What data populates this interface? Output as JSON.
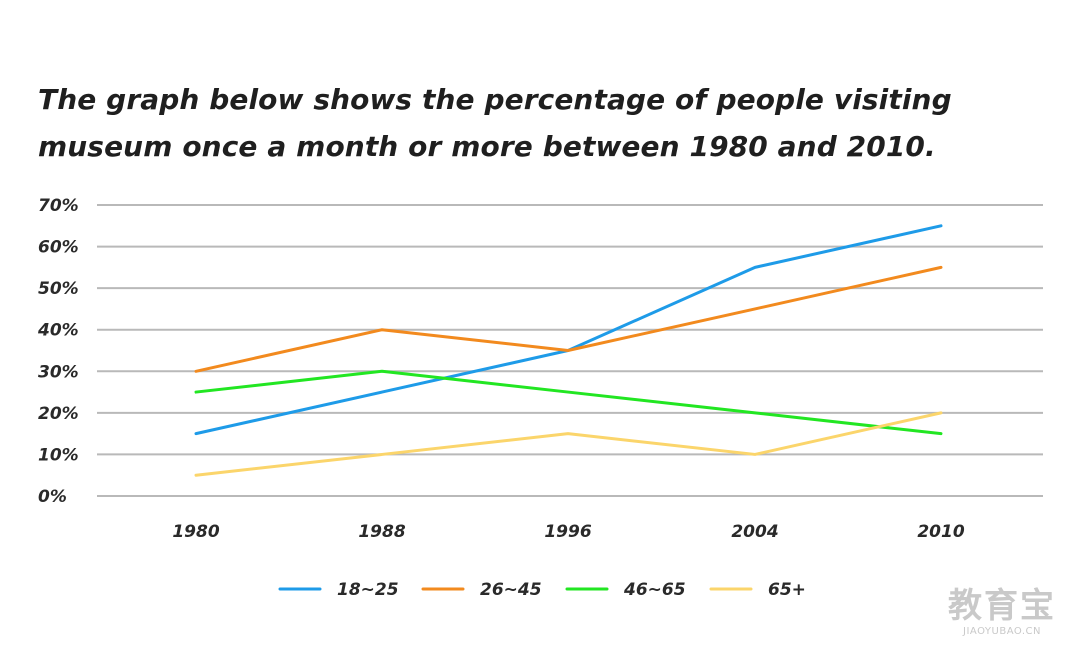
{
  "chart_data": {
    "type": "line",
    "title": "The graph below shows the percentage of people visiting museum once a month or more between 1980 and 2010.",
    "xlabel": "",
    "ylabel": "",
    "categories": [
      "1980",
      "1988",
      "1996",
      "2004",
      "2010"
    ],
    "y_ticks": [
      "0%",
      "10%",
      "20%",
      "30%",
      "40%",
      "50%",
      "60%",
      "70%"
    ],
    "ylim": [
      0,
      70
    ],
    "grid": true,
    "legend_position": "bottom",
    "series": [
      {
        "name": "18~25",
        "color": "#1e9be8",
        "values": [
          15,
          25,
          35,
          55,
          65
        ]
      },
      {
        "name": "26~45",
        "color": "#f28a1e",
        "values": [
          30,
          40,
          35,
          45,
          55
        ]
      },
      {
        "name": "46~65",
        "color": "#22e622",
        "values": [
          25,
          30,
          25,
          20,
          15
        ]
      },
      {
        "name": "65+",
        "color": "#fbd56b",
        "values": [
          5,
          10,
          15,
          10,
          20
        ]
      }
    ]
  },
  "watermark": {
    "logo": "教育宝",
    "url": "JIAOYUBAO.CN"
  }
}
